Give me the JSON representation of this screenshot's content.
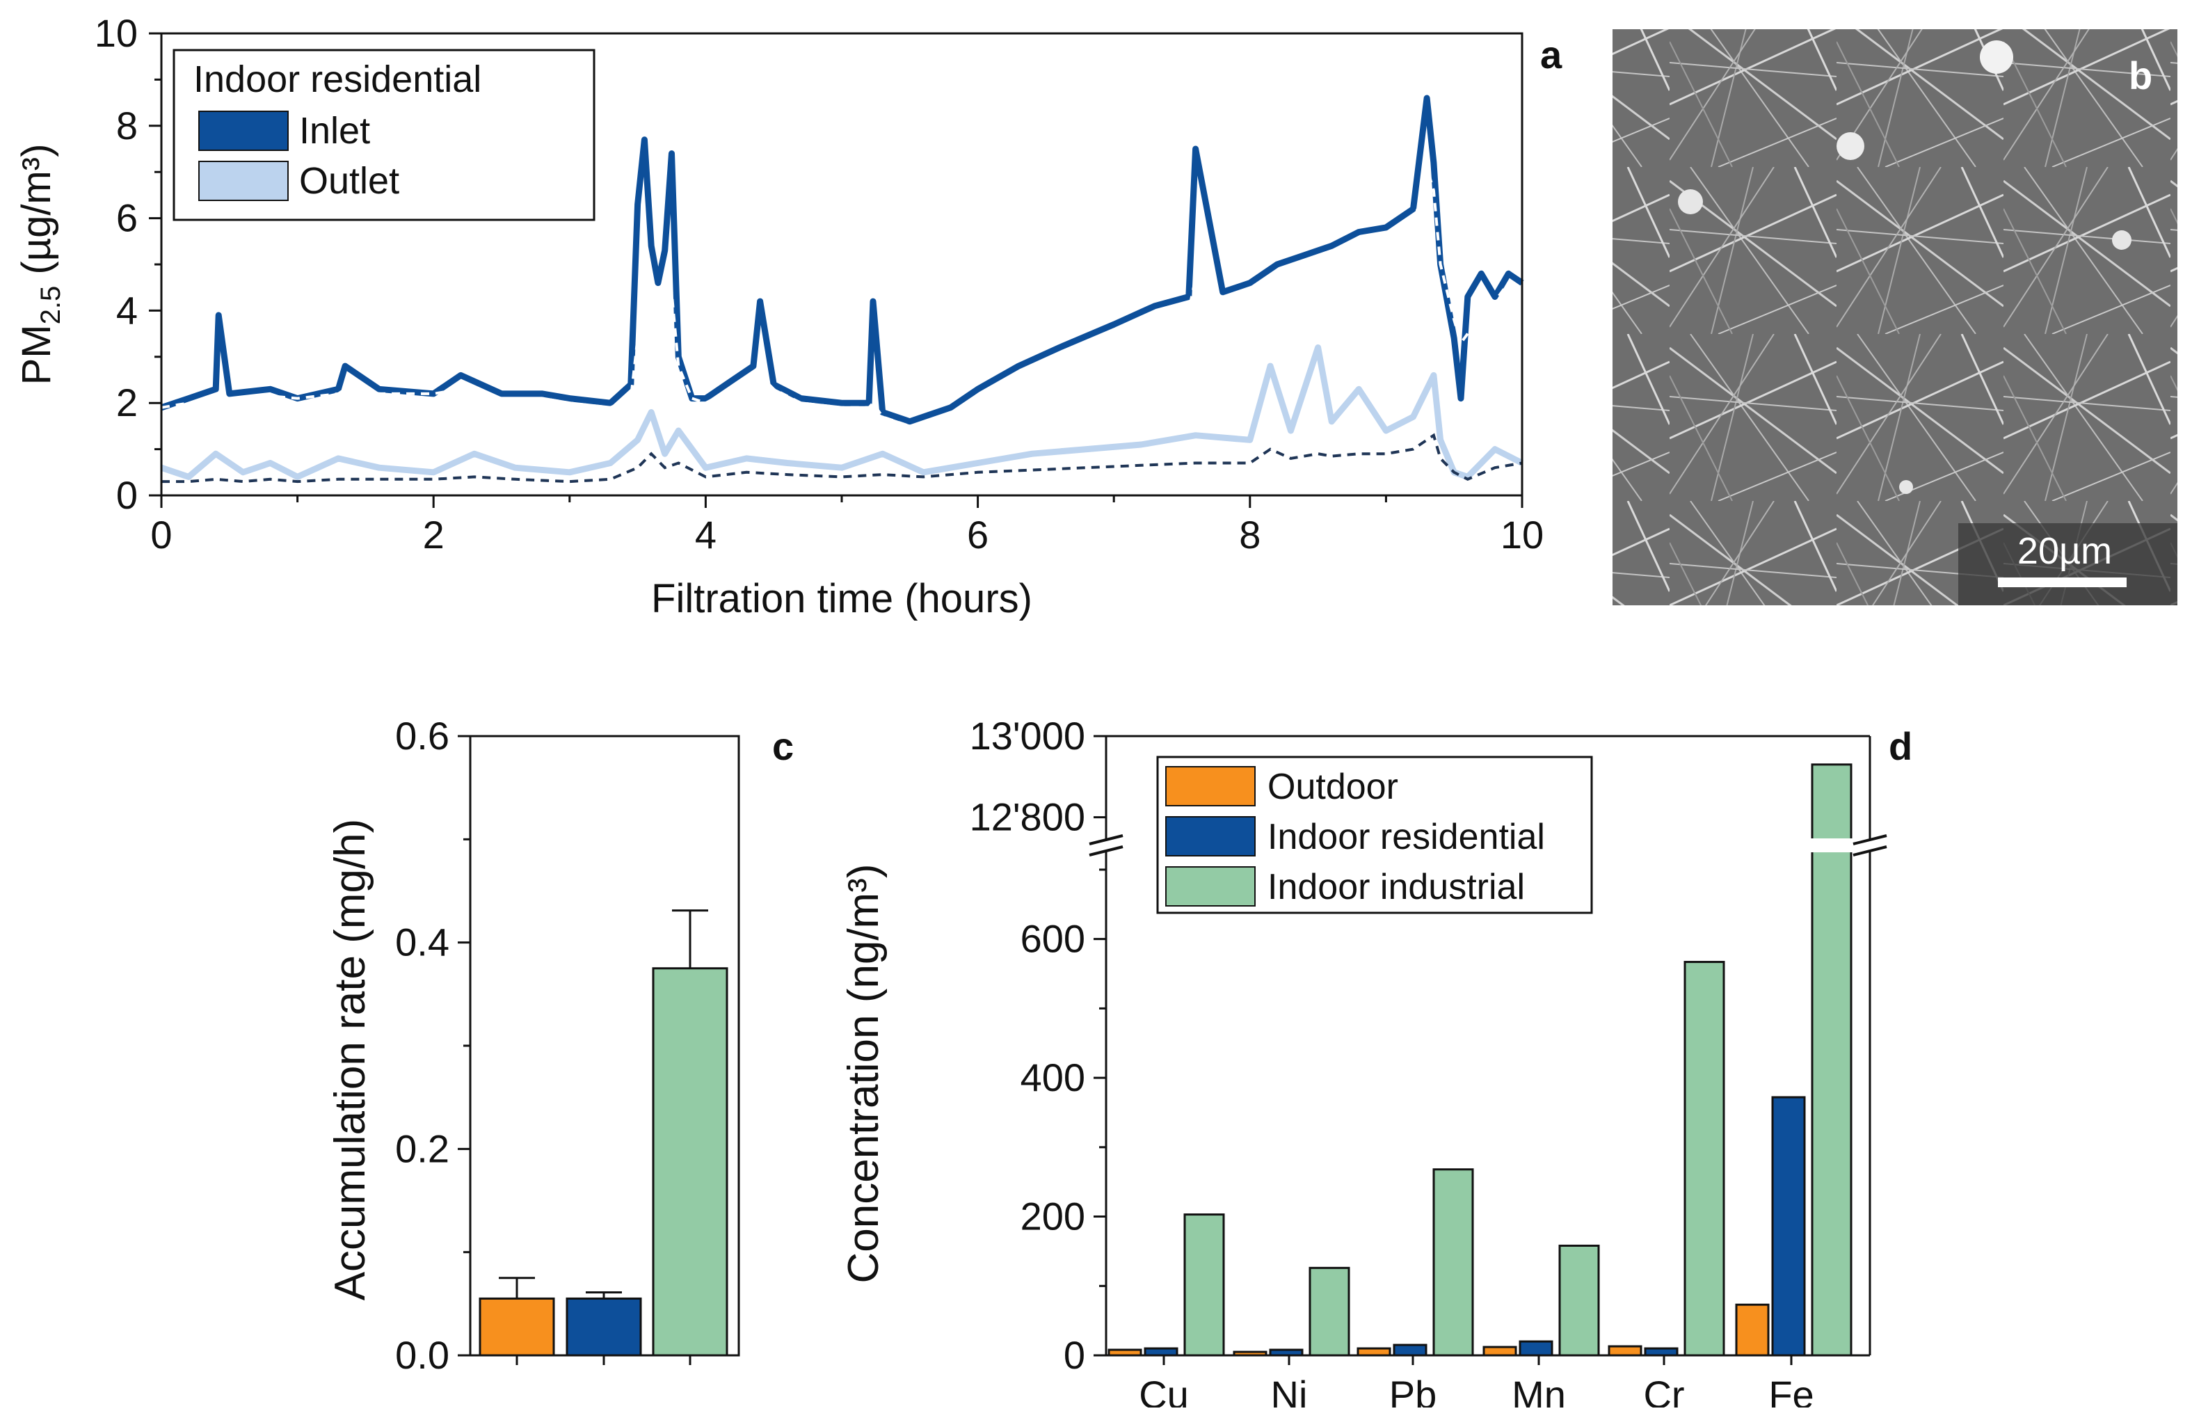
{
  "colors": {
    "inlet": "#0d4f9a",
    "outlet": "#bcd3ee",
    "outdoor": "#f7901e",
    "indoor_residential": "#0d4f9a",
    "indoor_industrial": "#93cba5"
  },
  "panel_labels": {
    "a": "a",
    "b": "b",
    "c": "c",
    "d": "d"
  },
  "micrograph": {
    "scale_bar_label": "20µm"
  },
  "chart_data": [
    {
      "panel": "a",
      "type": "line",
      "xlabel": "Filtration time (hours)",
      "ylabel_main": "PM",
      "ylabel_sub": "2.5",
      "ylabel_unit": " (µg/m³)",
      "xlim": [
        0,
        10
      ],
      "ylim": [
        0,
        10
      ],
      "xticks": [
        0,
        2,
        4,
        6,
        8,
        10
      ],
      "yticks": [
        0,
        2,
        4,
        6,
        8,
        10
      ],
      "legend_title": "Indoor residential",
      "legend_position": "top-left",
      "series": [
        {
          "name": "Inlet",
          "x": [
            0,
            0.2,
            0.4,
            0.42,
            0.5,
            0.8,
            1.0,
            1.3,
            1.35,
            1.6,
            2.0,
            2.2,
            2.5,
            2.8,
            3.0,
            3.3,
            3.45,
            3.5,
            3.55,
            3.6,
            3.65,
            3.7,
            3.75,
            3.8,
            3.9,
            4.0,
            4.2,
            4.35,
            4.4,
            4.5,
            4.7,
            5.0,
            5.2,
            5.23,
            5.3,
            5.5,
            5.8,
            6.0,
            6.3,
            6.6,
            7.0,
            7.3,
            7.55,
            7.6,
            7.8,
            8.0,
            8.2,
            8.4,
            8.6,
            8.8,
            9.0,
            9.2,
            9.3,
            9.35,
            9.4,
            9.5,
            9.55,
            9.6,
            9.7,
            9.8,
            9.9,
            10.0
          ],
          "y": [
            1.9,
            2.1,
            2.3,
            3.9,
            2.2,
            2.3,
            2.1,
            2.3,
            2.8,
            2.3,
            2.2,
            2.6,
            2.2,
            2.2,
            2.1,
            2.0,
            2.4,
            6.3,
            7.7,
            5.4,
            4.6,
            5.3,
            7.4,
            3.0,
            2.1,
            2.1,
            2.5,
            2.8,
            4.2,
            2.4,
            2.1,
            2.0,
            2.0,
            4.2,
            1.8,
            1.6,
            1.9,
            2.3,
            2.8,
            3.2,
            3.7,
            4.1,
            4.3,
            7.5,
            4.4,
            4.6,
            5.0,
            5.2,
            5.4,
            5.7,
            5.8,
            6.2,
            8.6,
            7.2,
            5.0,
            3.4,
            2.1,
            4.3,
            4.8,
            4.3,
            4.8,
            4.6
          ],
          "trend": [
            1.9,
            2.0,
            2.05,
            2.1,
            2.1,
            2.15,
            2.1,
            2.2,
            2.3,
            2.2,
            2.2,
            2.3,
            2.1,
            2.1,
            2.0,
            1.9,
            2.1,
            3.4,
            4.6,
            4.2,
            3.8,
            3.9,
            4.4,
            2.8,
            2.1,
            2.0,
            2.3,
            2.5,
            2.6,
            2.3,
            2.0,
            1.9,
            1.9,
            2.0,
            1.7,
            1.5,
            1.7,
            2.0,
            2.5,
            2.9,
            3.4,
            3.8,
            4.0,
            4.7,
            4.2,
            4.4,
            4.7,
            4.9,
            5.1,
            5.3,
            5.5,
            5.8,
            7.1,
            6.6,
            5.0,
            3.8,
            3.3,
            3.5,
            4.0,
            4.2,
            4.6,
            4.4
          ]
        },
        {
          "name": "Outlet",
          "x": [
            0,
            0.2,
            0.4,
            0.6,
            0.8,
            1.0,
            1.3,
            1.6,
            2.0,
            2.3,
            2.6,
            3.0,
            3.3,
            3.5,
            3.6,
            3.7,
            3.8,
            4.0,
            4.3,
            4.6,
            5.0,
            5.3,
            5.6,
            6.0,
            6.4,
            6.8,
            7.2,
            7.6,
            8.0,
            8.15,
            8.3,
            8.5,
            8.6,
            8.8,
            9.0,
            9.2,
            9.35,
            9.4,
            9.5,
            9.6,
            9.8,
            10.0
          ],
          "y": [
            0.6,
            0.4,
            0.9,
            0.5,
            0.7,
            0.4,
            0.8,
            0.6,
            0.5,
            0.9,
            0.6,
            0.5,
            0.7,
            1.2,
            1.8,
            0.9,
            1.4,
            0.6,
            0.8,
            0.7,
            0.6,
            0.9,
            0.5,
            0.7,
            0.9,
            1.0,
            1.1,
            1.3,
            1.2,
            2.8,
            1.4,
            3.2,
            1.6,
            2.3,
            1.4,
            1.7,
            2.6,
            1.2,
            0.5,
            0.4,
            1.0,
            0.7
          ],
          "trend": [
            0.3,
            0.3,
            0.35,
            0.3,
            0.35,
            0.3,
            0.35,
            0.35,
            0.35,
            0.4,
            0.35,
            0.3,
            0.35,
            0.6,
            0.9,
            0.6,
            0.7,
            0.4,
            0.5,
            0.45,
            0.4,
            0.45,
            0.4,
            0.5,
            0.55,
            0.6,
            0.65,
            0.7,
            0.7,
            1.0,
            0.8,
            0.9,
            0.85,
            0.9,
            0.9,
            1.0,
            1.3,
            0.8,
            0.5,
            0.35,
            0.6,
            0.7
          ]
        }
      ]
    },
    {
      "panel": "c",
      "type": "bar",
      "ylabel": "Accumulation rate (mg/h)",
      "ylim": [
        0,
        0.6
      ],
      "yticks": [
        "0.0",
        "0.2",
        "0.4",
        "0.6"
      ],
      "categories": [
        "Outdoor",
        "Indoor residential",
        "Indoor industrial"
      ],
      "values": [
        0.055,
        0.055,
        0.375
      ],
      "errors": [
        0.02,
        0.006,
        0.056
      ]
    },
    {
      "panel": "d",
      "type": "bar",
      "ylabel": "Concentration (ng/m³)",
      "ylim_lower": [
        0,
        720
      ],
      "ylim_upper": [
        12760,
        13000
      ],
      "yticks_lower": [
        "0",
        "200",
        "400",
        "600"
      ],
      "yticks_upper": [
        "12'800",
        "13'000"
      ],
      "legend_position": "top-left",
      "categories": [
        "Cu",
        "Ni",
        "Pb",
        "Mn",
        "Cr",
        "Fe"
      ],
      "series": [
        {
          "name": "Outdoor",
          "values": [
            8,
            5,
            10,
            12,
            13,
            73
          ]
        },
        {
          "name": "Indoor residential",
          "values": [
            10,
            8,
            15,
            20,
            10,
            372
          ]
        },
        {
          "name": "Indoor industrial",
          "values": [
            203,
            126,
            268,
            158,
            567,
            12930
          ]
        }
      ]
    }
  ]
}
